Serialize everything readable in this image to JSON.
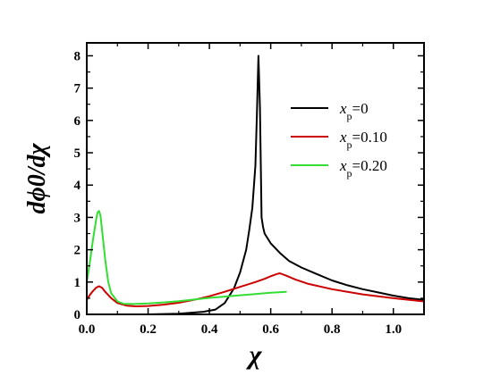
{
  "chart_data": {
    "type": "line",
    "xlabel": "χ",
    "ylabel": "dϕ0/dχ",
    "xlim": [
      0.0,
      1.1
    ],
    "ylim": [
      0,
      8.4
    ],
    "xticks": [
      0.0,
      0.2,
      0.4,
      0.6,
      0.8,
      1.0
    ],
    "xtick_labels": [
      "0.0",
      "0.2",
      "0.4",
      "0.6",
      "0.8",
      "1.0"
    ],
    "yticks": [
      0,
      1,
      2,
      3,
      4,
      5,
      6,
      7,
      8
    ],
    "ytick_labels": [
      "0",
      "1",
      "2",
      "3",
      "4",
      "5",
      "6",
      "7",
      "8"
    ],
    "grid": false,
    "legend_position": "right",
    "series": [
      {
        "name": "xp=0",
        "legend": {
          "var": "x",
          "sub": "p",
          "value": "=0"
        },
        "color": "#000000",
        "x": [
          0.2,
          0.3,
          0.38,
          0.42,
          0.45,
          0.48,
          0.5,
          0.52,
          0.53,
          0.54,
          0.55,
          0.555,
          0.56,
          0.565,
          0.57,
          0.575,
          0.58,
          0.6,
          0.63,
          0.66,
          0.7,
          0.75,
          0.8,
          0.85,
          0.9,
          0.95,
          1.0,
          1.05,
          1.1
        ],
        "y": [
          0.0,
          0.02,
          0.08,
          0.15,
          0.35,
          0.8,
          1.3,
          2.0,
          2.6,
          3.3,
          4.6,
          6.2,
          8.0,
          6.4,
          3.0,
          2.7,
          2.5,
          2.2,
          1.9,
          1.65,
          1.45,
          1.25,
          1.05,
          0.9,
          0.78,
          0.68,
          0.58,
          0.5,
          0.45
        ]
      },
      {
        "name": "xp=0.10",
        "legend": {
          "var": "x",
          "sub": "p",
          "value": "=0.10"
        },
        "color": "#cc0000",
        "x": [
          0.0,
          0.01,
          0.02,
          0.03,
          0.04,
          0.05,
          0.06,
          0.08,
          0.1,
          0.13,
          0.16,
          0.2,
          0.25,
          0.3,
          0.35,
          0.4,
          0.45,
          0.5,
          0.55,
          0.58,
          0.6,
          0.62,
          0.63,
          0.65,
          0.68,
          0.72,
          0.8,
          0.9,
          1.0,
          1.1
        ],
        "y": [
          0.45,
          0.6,
          0.72,
          0.82,
          0.87,
          0.82,
          0.7,
          0.5,
          0.35,
          0.27,
          0.25,
          0.26,
          0.3,
          0.36,
          0.45,
          0.56,
          0.7,
          0.85,
          1.0,
          1.1,
          1.18,
          1.25,
          1.27,
          1.2,
          1.08,
          0.95,
          0.78,
          0.62,
          0.5,
          0.4
        ]
      },
      {
        "name": "xp=0.20",
        "legend": {
          "var": "x",
          "sub": "p",
          "value": "=0.20"
        },
        "color": "#33dd33",
        "x": [
          0.0,
          0.01,
          0.02,
          0.03,
          0.035,
          0.04,
          0.045,
          0.05,
          0.06,
          0.07,
          0.08,
          0.1,
          0.12,
          0.15,
          0.2,
          0.25,
          0.3,
          0.35,
          0.4,
          0.45,
          0.5,
          0.55,
          0.6,
          0.65
        ],
        "y": [
          1.0,
          1.6,
          2.3,
          2.9,
          3.15,
          3.2,
          3.05,
          2.6,
          1.7,
          1.0,
          0.65,
          0.4,
          0.33,
          0.32,
          0.34,
          0.37,
          0.41,
          0.46,
          0.51,
          0.55,
          0.59,
          0.63,
          0.67,
          0.7
        ]
      }
    ]
  }
}
